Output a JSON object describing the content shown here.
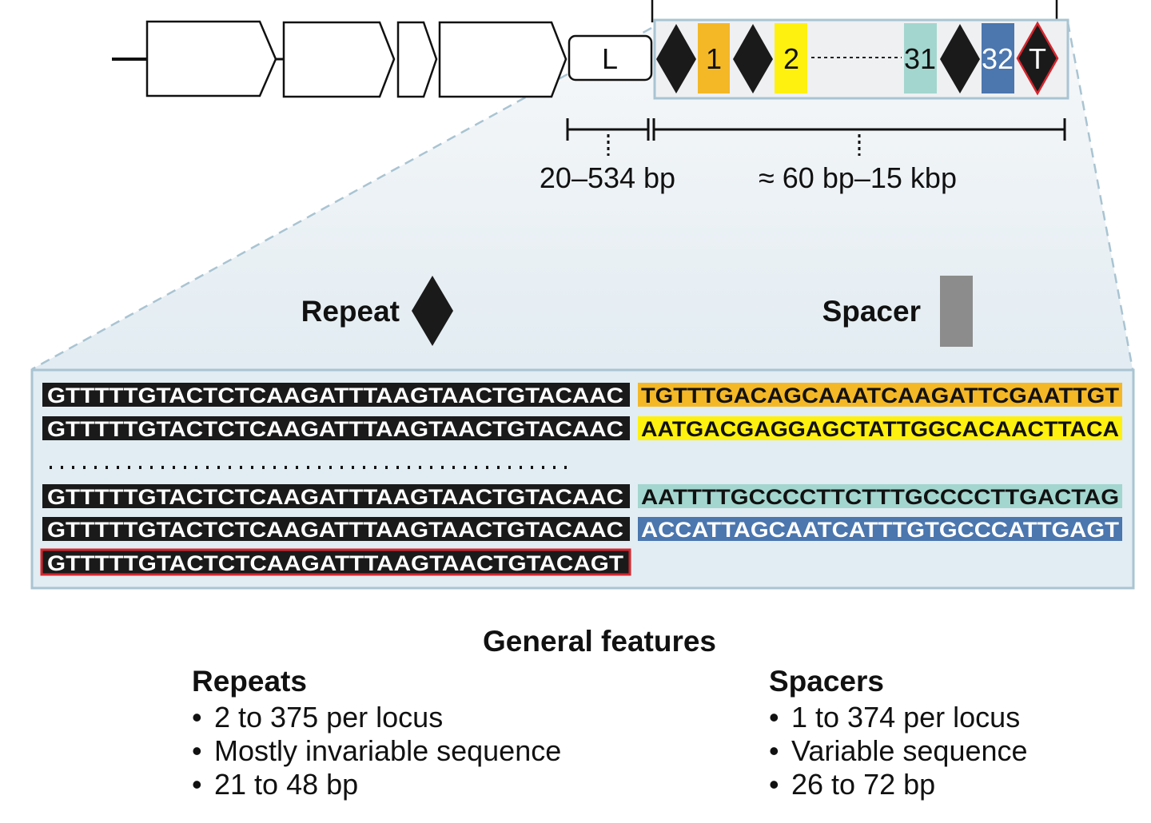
{
  "locus": {
    "leader_label": "L",
    "spacers": [
      {
        "label": "1",
        "color": "#f4b826"
      },
      {
        "label": "2",
        "color": "#fff10f"
      },
      {
        "label": "31",
        "color": "#a3d6cf"
      },
      {
        "label": "32",
        "color": "#4b76ae"
      }
    ],
    "terminal_label": "T",
    "leader_length": "20–534 bp",
    "array_length": "≈ 60 bp–15 kbp"
  },
  "legend": {
    "repeat": "Repeat",
    "spacer": "Spacer",
    "spacer_color": "#8c8c8c"
  },
  "sequences": {
    "rows": [
      {
        "repeat": "GTTTTTGTACTCTCAAGATTTAAGTAACTGTACAAC",
        "spacer": "TGTTTGACAGCAAATCAAGATTCGAATTGT",
        "color": "#f4b826"
      },
      {
        "repeat": "GTTTTTGTACTCTCAAGATTTAAGTAACTGTACAAC",
        "spacer": "AATGACGAGGAGCTATTGGCACAACTTACA",
        "color": "#fff10f"
      },
      {
        "repeat": "GTTTTTGTACTCTCAAGATTTAAGTAACTGTACAAC",
        "spacer": "AATTTTGCCCCTTCTTTGCCCCTTGACTAG",
        "color": "#a3d6cf"
      },
      {
        "repeat": "GTTTTTGTACTCTCAAGATTTAAGTAACTGTACAAC",
        "spacer": "ACCATTAGCAATCATTTGTGCCCATTGAGT",
        "color": "#4b76ae"
      }
    ],
    "terminal_repeat": "GTTTTTGTACTCTCAAGATTTAAGTAACTGTACAGT"
  },
  "features": {
    "title": "General features",
    "repeats": {
      "heading": "Repeats",
      "items": [
        "2 to 375 per locus",
        "Mostly invariable sequence",
        "21 to 48 bp"
      ]
    },
    "spacers": {
      "heading": "Spacers",
      "items": [
        "1 to 374 per locus",
        "Variable sequence",
        "26 to 72 bp"
      ]
    }
  }
}
